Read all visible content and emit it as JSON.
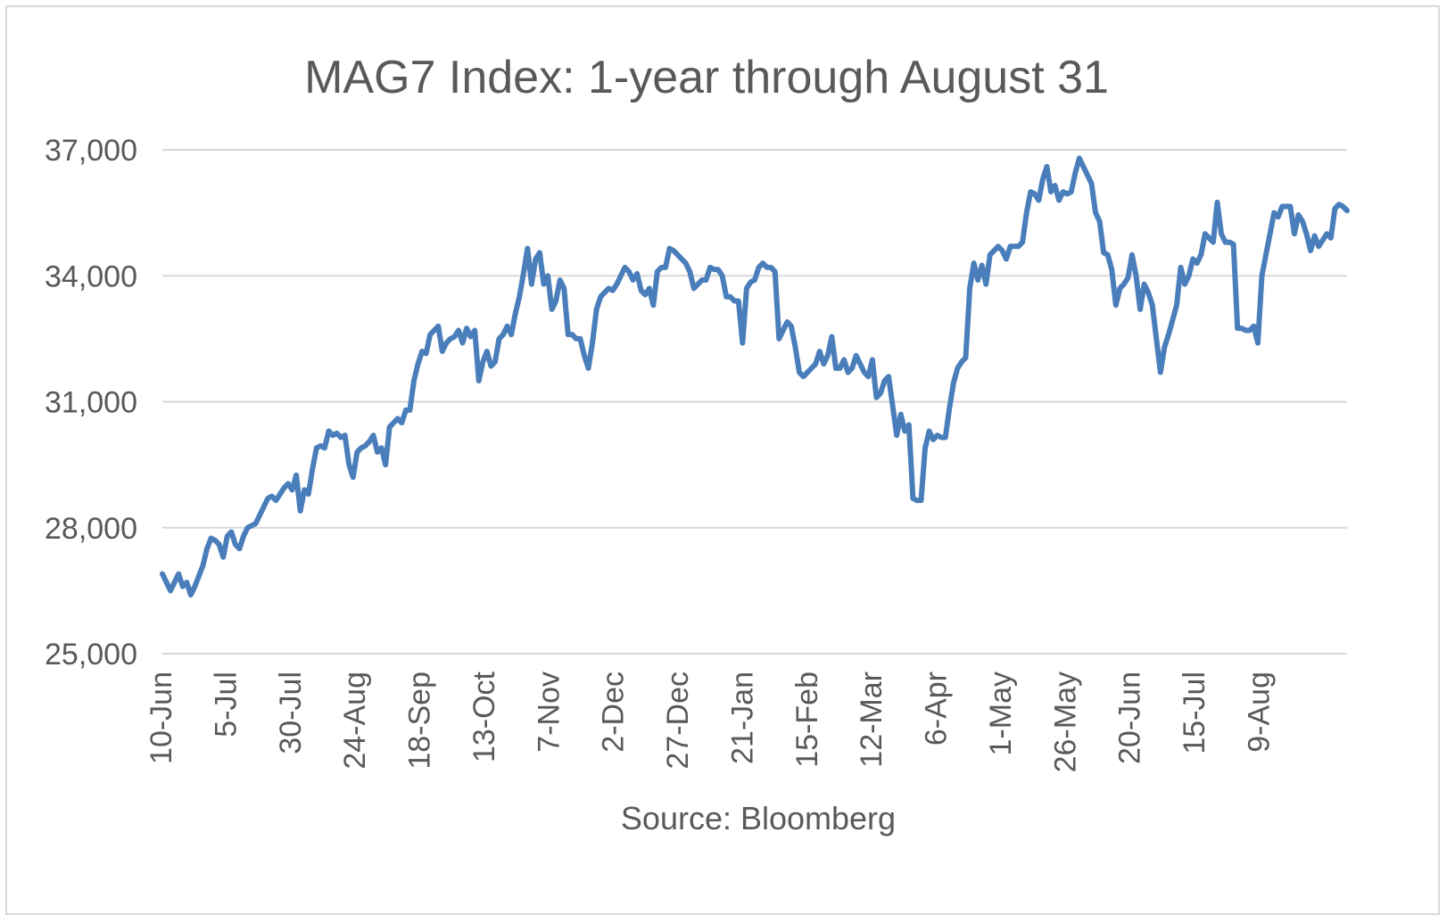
{
  "chart_data": {
    "type": "line",
    "title": "MAG7 Index: 1-year through August 31",
    "xlabel": "Source: Bloomberg",
    "ylabel": "",
    "ylim": [
      25000,
      37000
    ],
    "yticks": [
      25000,
      28000,
      31000,
      34000,
      37000
    ],
    "ytick_labels": [
      "25,000",
      "28,000",
      "31,000",
      "34,000",
      "37,000"
    ],
    "xtick_labels": [
      "10-Jun",
      "5-Jul",
      "30-Jul",
      "24-Aug",
      "18-Sep",
      "13-Oct",
      "7-Nov",
      "2-Dec",
      "27-Dec",
      "21-Jan",
      "15-Feb",
      "12-Mar",
      "6-Apr",
      "1-May",
      "26-May",
      "20-Jun",
      "15-Jul",
      "9-Aug"
    ],
    "grid": true,
    "color": "#4a7ebb",
    "series": [
      {
        "values": [
          26900,
          26700,
          26500,
          26700,
          26900,
          26600,
          26700,
          26400,
          26600,
          26850,
          27100,
          27500,
          27750,
          27700,
          27600,
          27300,
          27800,
          27900,
          27600,
          27500,
          27800,
          28000,
          28050,
          28100,
          28300,
          28500,
          28700,
          28750,
          28650,
          28800,
          28950,
          29050,
          28900,
          29250,
          28400,
          28900,
          28800,
          29400,
          29900,
          29950,
          29900,
          30300,
          30200,
          30250,
          30150,
          30200,
          29500,
          29200,
          29800,
          29900,
          29950,
          30050,
          30200,
          29800,
          29900,
          29500,
          30400,
          30500,
          30600,
          30500,
          30800,
          30800,
          31500,
          31900,
          32200,
          32150,
          32600,
          32700,
          32800,
          32200,
          32400,
          32500,
          32550,
          32700,
          32400,
          32750,
          32550,
          32700,
          31500,
          31950,
          32200,
          31850,
          31950,
          32500,
          32600,
          32800,
          32600,
          33100,
          33500,
          34050,
          34650,
          33800,
          34400,
          34550,
          33800,
          34000,
          33200,
          33400,
          33900,
          33700,
          32600,
          32600,
          32500,
          32500,
          32100,
          31800,
          32400,
          33200,
          33500,
          33600,
          33700,
          33650,
          33800,
          34000,
          34200,
          34100,
          33900,
          34050,
          33650,
          33550,
          33700,
          33300,
          34100,
          34200,
          34200,
          34650,
          34600,
          34500,
          34400,
          34300,
          34100,
          33700,
          33800,
          33900,
          33900,
          34200,
          34150,
          34150,
          34000,
          33500,
          33500,
          33400,
          33400,
          32400,
          33700,
          33850,
          33900,
          34200,
          34300,
          34200,
          34200,
          34100,
          32500,
          32700,
          32900,
          32800,
          32300,
          31700,
          31600,
          31700,
          31800,
          31900,
          32200,
          31900,
          32100,
          32550,
          31800,
          31800,
          32000,
          31700,
          31800,
          32100,
          31900,
          31700,
          31600,
          32000,
          31100,
          31200,
          31500,
          31600,
          30900,
          30200,
          30700,
          30300,
          30450,
          28700,
          28650,
          28650,
          29900,
          30300,
          30100,
          30200,
          30150,
          30150,
          30850,
          31450,
          31800,
          31950,
          32050,
          33700,
          34300,
          33900,
          34250,
          33800,
          34500,
          34600,
          34700,
          34600,
          34400,
          34700,
          34700,
          34700,
          34800,
          35500,
          36000,
          35950,
          35800,
          36300,
          36600,
          36000,
          36150,
          35800,
          36000,
          35950,
          36000,
          36450,
          36800,
          36600,
          36400,
          36200,
          35500,
          35300,
          34550,
          34500,
          34150,
          33300,
          33700,
          33800,
          33950,
          34500,
          34000,
          33200,
          33800,
          33600,
          33300,
          32500,
          31700,
          32300,
          32600,
          32950,
          33300,
          34200,
          33800,
          34000,
          34400,
          34300,
          34500,
          35000,
          34900,
          34800,
          35750,
          35000,
          34800,
          34800,
          34750,
          32750,
          32750,
          32700,
          32700,
          32800,
          32400,
          34000,
          34500,
          35000,
          35500,
          35400,
          35650,
          35650,
          35650,
          35000,
          35450,
          35300,
          35000,
          34600,
          34950,
          34700,
          34850,
          35000,
          34900,
          35600,
          35700,
          35650,
          35550
        ]
      }
    ]
  }
}
